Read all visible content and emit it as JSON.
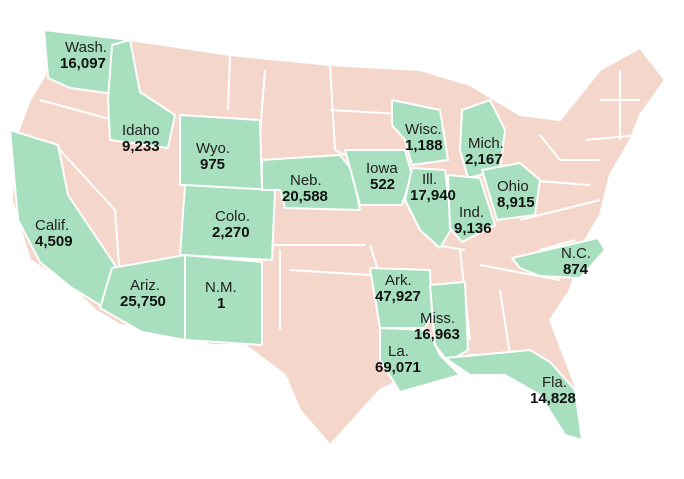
{
  "map": {
    "colors": {
      "highlighted": "#a7dfbf",
      "other": "#f4d6ca",
      "border": "#ffffff"
    },
    "states": [
      {
        "id": "wa",
        "name": "Wash.",
        "value": "16,097"
      },
      {
        "id": "id",
        "name": "Idaho",
        "value": "9,233"
      },
      {
        "id": "wy",
        "name": "Wyo.",
        "value": "975"
      },
      {
        "id": "ca",
        "name": "Calif.",
        "value": "4,509"
      },
      {
        "id": "co",
        "name": "Colo.",
        "value": "2,270"
      },
      {
        "id": "ne",
        "name": "Neb.",
        "value": "20,588"
      },
      {
        "id": "ia",
        "name": "Iowa",
        "value": "522"
      },
      {
        "id": "wi",
        "name": "Wisc.",
        "value": "1,188"
      },
      {
        "id": "mi",
        "name": "Mich.",
        "value": "2,167"
      },
      {
        "id": "il",
        "name": "Ill.",
        "value": "17,940"
      },
      {
        "id": "in",
        "name": "Ind.",
        "value": "9,136"
      },
      {
        "id": "oh",
        "name": "Ohio",
        "value": "8,915"
      },
      {
        "id": "az",
        "name": "Ariz.",
        "value": "25,750"
      },
      {
        "id": "nm",
        "name": "N.M.",
        "value": "1"
      },
      {
        "id": "ar",
        "name": "Ark.",
        "value": "47,927"
      },
      {
        "id": "ms",
        "name": "Miss.",
        "value": "16,963"
      },
      {
        "id": "la",
        "name": "La.",
        "value": "69,071"
      },
      {
        "id": "nc",
        "name": "N.C.",
        "value": "874"
      },
      {
        "id": "fl",
        "name": "Fla.",
        "value": "14,828"
      }
    ]
  }
}
